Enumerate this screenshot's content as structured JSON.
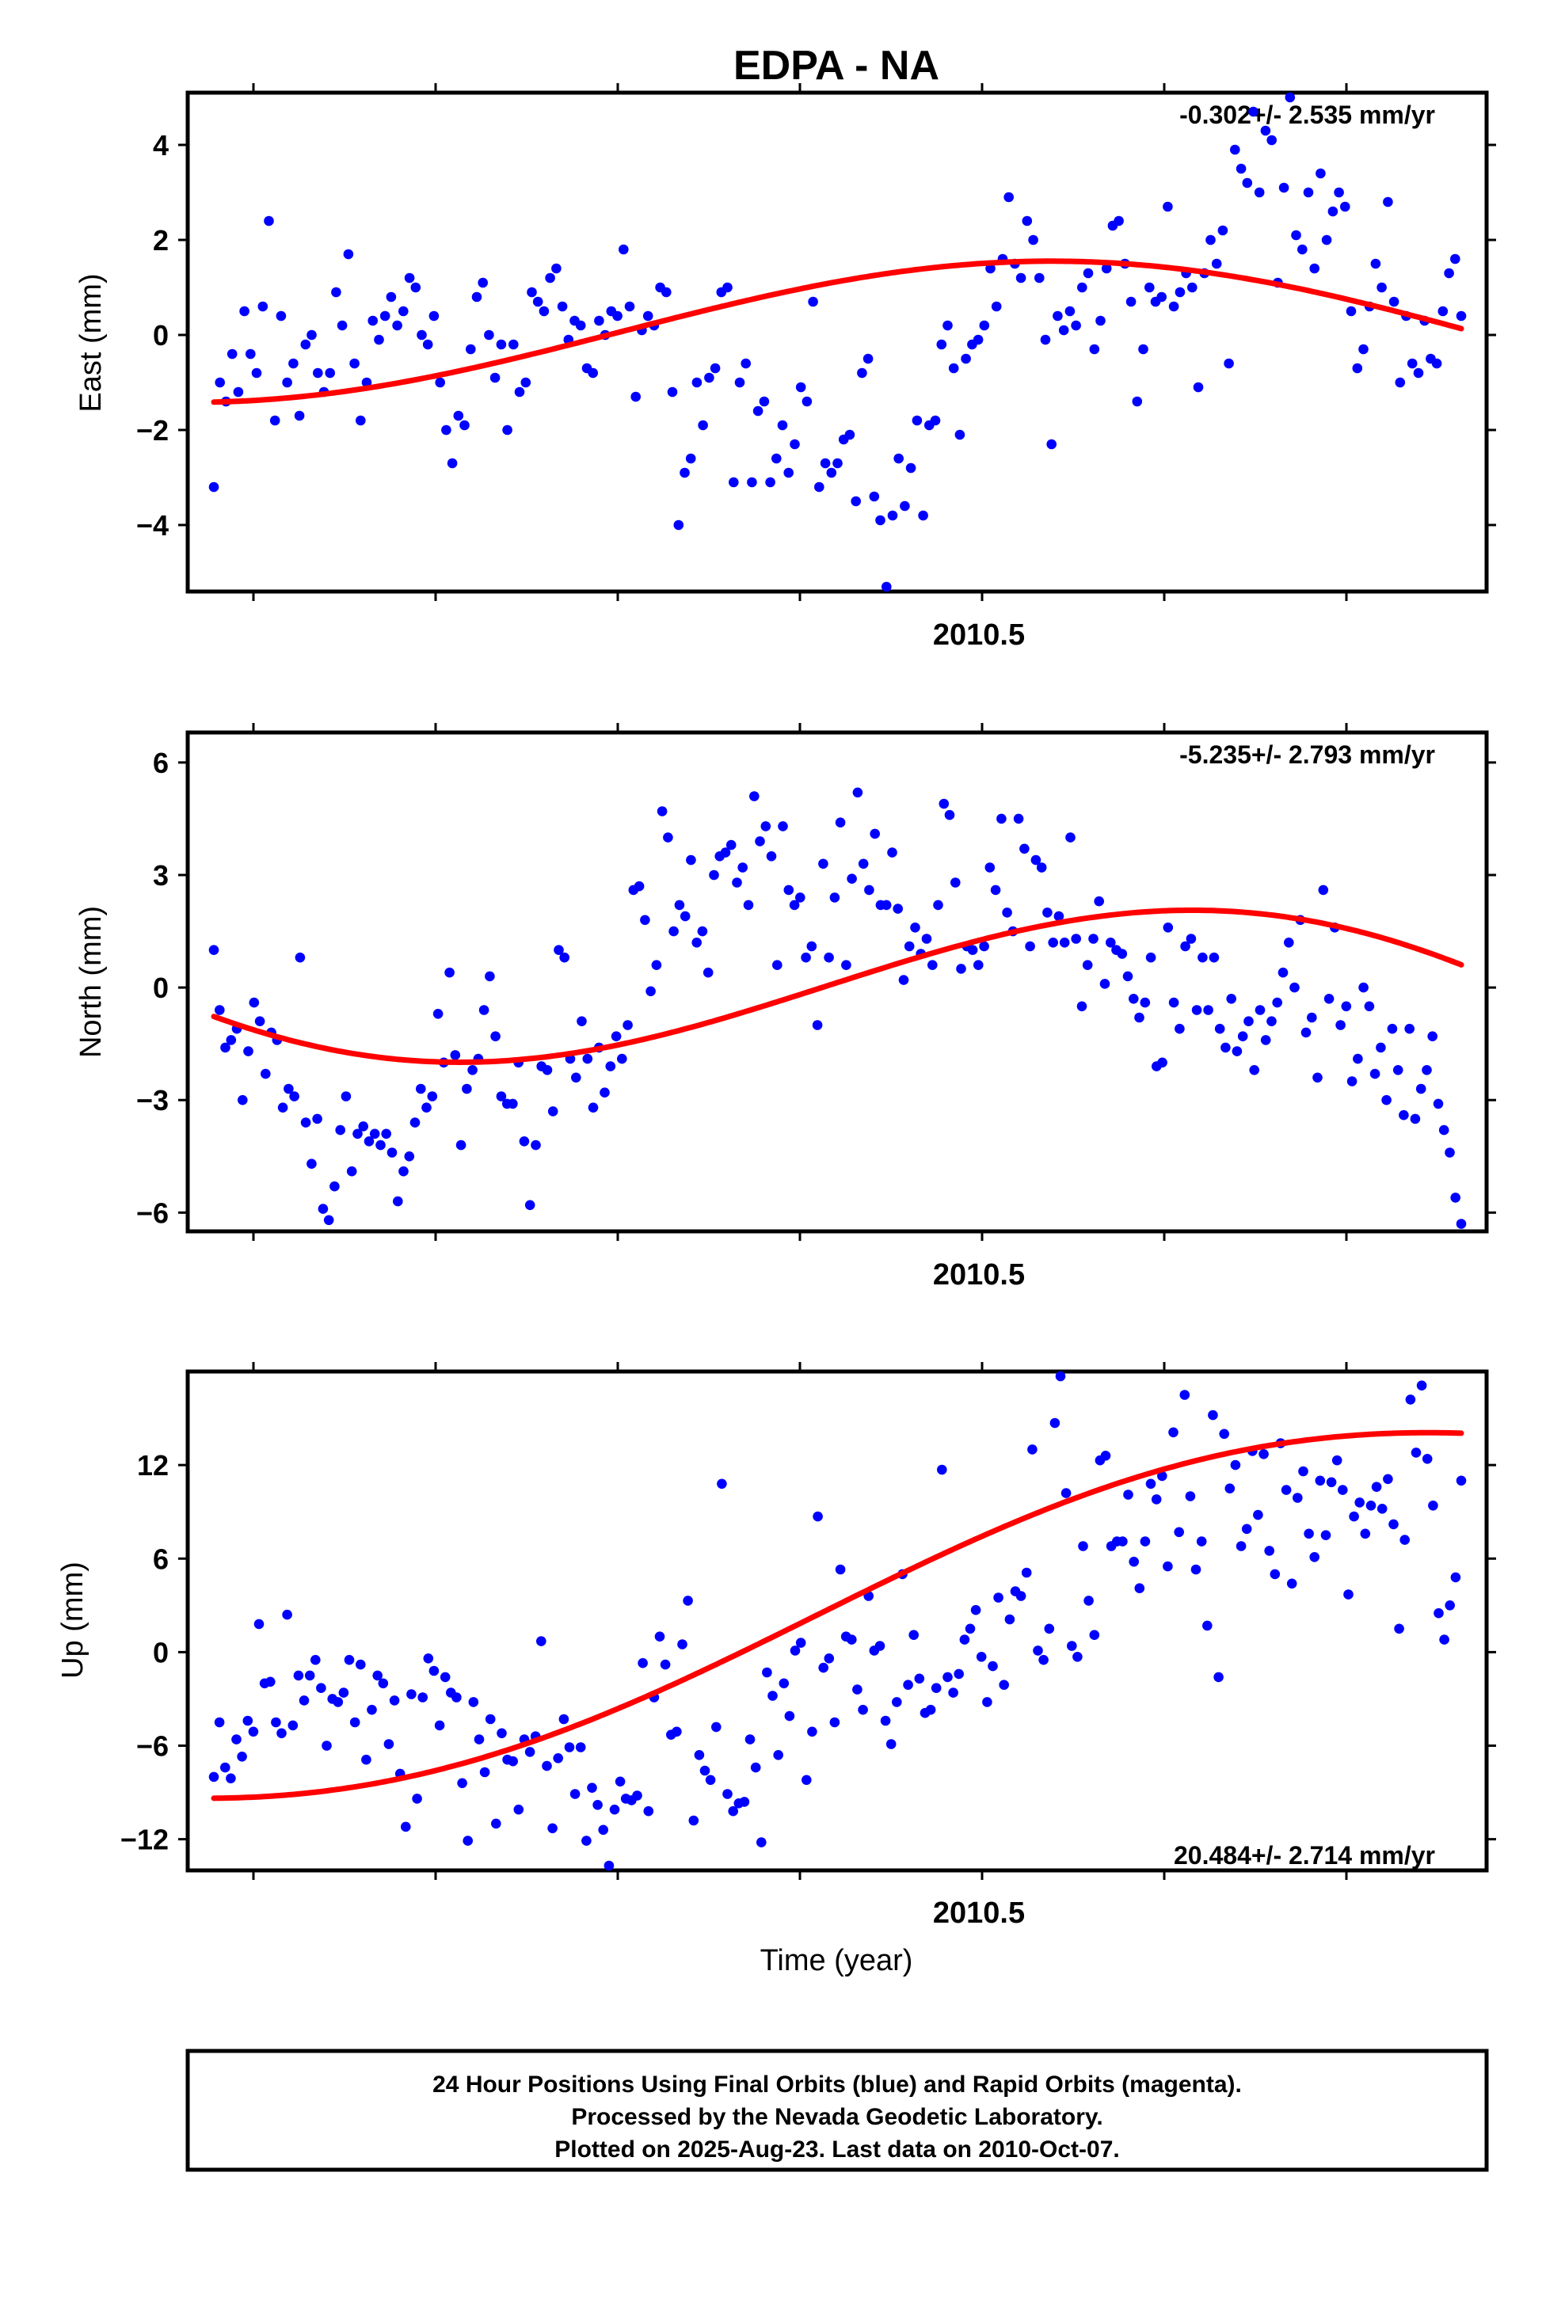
{
  "figure": {
    "title": "EDPA - NA",
    "footer_lines": [
      "24 Hour Positions Using Final Orbits (blue) and Rapid Orbits (magenta).",
      "Processed by the Nevada Geodetic Laboratory.",
      "Plotted on 2025-Aug-23. Last data on 2010-Oct-07."
    ],
    "colors": {
      "points": "#0000ff",
      "fit": "#ff0000",
      "axes": "#000000"
    }
  },
  "chart_data": [
    {
      "type": "scatter",
      "ylabel": "East (mm)",
      "xlabel": "",
      "x_tick_label": "2010.5",
      "xlim": [
        2010.145,
        2010.855
      ],
      "ylim": [
        -5.4,
        5.1
      ],
      "yticks": [
        4,
        2,
        0,
        -2,
        -4
      ],
      "ytick_labels": [
        "4",
        "2",
        "0",
        "−2",
        "−4"
      ],
      "rate_label": "-0.302+/- 2.535 mm/yr",
      "rate_position": "top-right",
      "series": [
        {
          "values": [
            -3.2,
            -1.0,
            -1.4,
            -0.4,
            -1.2,
            0.5,
            -0.4,
            -0.8,
            0.6,
            2.4,
            -1.8,
            0.4,
            -1.0,
            -0.6,
            -1.7,
            -0.2,
            0.0,
            -0.8,
            -1.2,
            -0.8,
            0.9,
            0.2,
            1.7,
            -0.6,
            -1.8,
            -1.0,
            0.3,
            -0.1,
            0.4,
            0.8,
            0.2,
            0.5,
            1.2,
            1.0,
            0.0,
            -0.2,
            0.4,
            -1.0,
            -2.0,
            -2.7,
            -1.7,
            -1.9,
            -0.3,
            0.8,
            1.1,
            0.0,
            -0.9,
            -0.2,
            -2.0,
            -0.2,
            -1.2,
            -1.0,
            0.9,
            0.7,
            0.5,
            1.2,
            1.4,
            0.6,
            -0.1,
            0.3,
            0.2,
            -0.7,
            -0.8,
            0.3,
            0.0,
            0.5,
            0.4,
            1.8,
            0.6,
            -1.3,
            0.1,
            0.4,
            0.2,
            1.0,
            0.9,
            -1.2,
            -4.0,
            -2.9,
            -2.6,
            -1.0,
            -1.9,
            -0.9,
            -0.7,
            0.9,
            1.0,
            -3.1,
            -1.0,
            -0.6,
            -3.1,
            -1.6,
            -1.4,
            -3.1,
            -2.6,
            -1.9,
            -2.9,
            -2.3,
            -1.1,
            -1.4,
            0.7,
            -3.2,
            -2.7,
            -2.9,
            -2.7,
            -2.2,
            -2.1,
            -3.5,
            -0.8,
            -0.5,
            -3.4,
            -3.9,
            -5.3,
            -3.8,
            -2.6,
            -3.6,
            -2.8,
            -1.8,
            -3.8,
            -1.9,
            -1.8,
            -0.2,
            0.2,
            -0.7,
            -2.1,
            -0.5,
            -0.2,
            -0.1,
            0.2,
            1.4,
            0.6,
            1.6,
            2.9,
            1.5,
            1.2,
            2.4,
            2.0,
            1.2,
            -0.1,
            -2.3,
            0.4,
            0.1,
            0.5,
            0.2,
            1.0,
            1.3,
            -0.3,
            0.3,
            1.4,
            2.3,
            2.4,
            1.5,
            0.7,
            -1.4,
            -0.3,
            1.0,
            0.7,
            0.8,
            2.7,
            0.6,
            0.9,
            1.3,
            1.0,
            -1.1,
            1.3,
            2.0,
            1.5,
            2.2,
            -0.6,
            3.9,
            3.5,
            3.2,
            4.7,
            3.0,
            4.3,
            4.1,
            1.1,
            3.1,
            5.0,
            2.1,
            1.8,
            3.0,
            1.4,
            3.4,
            2.0,
            2.6,
            3.0,
            2.7,
            0.5,
            -0.7,
            -0.3,
            0.6,
            1.5,
            1.0,
            2.8,
            0.7,
            -1.0,
            0.4,
            -0.6,
            -0.8,
            0.3,
            -0.5,
            -0.6,
            0.5,
            1.3,
            1.6,
            0.4
          ]
        }
      ],
      "fit_label": "",
      "fit": {
        "mean": 0.03,
        "rate": -0.302,
        "cos": -1.55,
        "sin": 0.18
      }
    },
    {
      "type": "scatter",
      "ylabel": "North (mm)",
      "xlabel": "",
      "x_tick_label": "2010.5",
      "xlim": [
        2010.145,
        2010.855
      ],
      "ylim": [
        -6.5,
        6.8
      ],
      "yticks": [
        6,
        3,
        0,
        -3,
        -6
      ],
      "ytick_labels": [
        "6",
        "3",
        "0",
        "−3",
        "−6"
      ],
      "rate_label": "-5.235+/- 2.793 mm/yr",
      "rate_position": "top-right",
      "series": [
        {
          "values": [
            1.0,
            -0.6,
            -1.6,
            -1.4,
            -1.1,
            -3.0,
            -1.7,
            -0.4,
            -0.9,
            -2.3,
            -1.2,
            -1.4,
            -3.2,
            -2.7,
            -2.9,
            0.8,
            -3.6,
            -4.7,
            -3.5,
            -5.9,
            -6.2,
            -5.3,
            -3.8,
            -2.9,
            -4.9,
            -3.9,
            -3.7,
            -4.1,
            -3.9,
            -4.2,
            -3.9,
            -4.4,
            -5.7,
            -4.9,
            -4.5,
            -3.6,
            -2.7,
            -3.2,
            -2.9,
            -0.7,
            -2.0,
            0.4,
            -1.8,
            -4.2,
            -2.7,
            -2.2,
            -1.9,
            -0.6,
            0.3,
            -1.3,
            -2.9,
            -3.1,
            -3.1,
            -2.0,
            -4.1,
            -5.8,
            -4.2,
            -2.1,
            -2.2,
            -3.3,
            1.0,
            0.8,
            -1.9,
            -2.4,
            -0.9,
            -1.9,
            -3.2,
            -1.6,
            -2.8,
            -2.1,
            -1.3,
            -1.9,
            -1.0,
            2.6,
            2.7,
            1.8,
            -0.1,
            0.6,
            4.7,
            4.0,
            1.5,
            2.2,
            1.9,
            3.4,
            1.2,
            1.5,
            0.4,
            3.0,
            3.5,
            3.6,
            3.8,
            2.8,
            3.2,
            2.2,
            5.1,
            3.9,
            4.3,
            3.5,
            0.6,
            4.3,
            2.6,
            2.2,
            2.4,
            0.8,
            1.1,
            -1.0,
            3.3,
            0.8,
            2.4,
            4.4,
            0.6,
            2.9,
            5.2,
            3.3,
            2.6,
            4.1,
            2.2,
            2.2,
            3.6,
            2.1,
            0.2,
            1.1,
            1.6,
            0.9,
            1.3,
            0.6,
            2.2,
            4.9,
            4.6,
            2.8,
            0.5,
            1.1,
            1.0,
            0.6,
            1.1,
            3.2,
            2.6,
            4.5,
            2.0,
            1.5,
            4.5,
            3.7,
            1.1,
            3.4,
            3.2,
            2.0,
            1.2,
            1.9,
            1.2,
            4.0,
            1.3,
            -0.5,
            0.6,
            1.3,
            2.3,
            0.1,
            1.2,
            1.0,
            0.9,
            0.3,
            -0.3,
            -0.8,
            -0.4,
            0.8,
            -2.1,
            -2.0,
            1.6,
            -0.4,
            -1.1,
            1.1,
            1.3,
            -0.6,
            0.8,
            -0.6,
            0.8,
            -1.1,
            -1.6,
            -0.3,
            -1.7,
            -1.3,
            -0.9,
            -2.2,
            -0.6,
            -1.4,
            -0.9,
            -0.4,
            0.4,
            1.2,
            0.0,
            1.8,
            -1.2,
            -0.8,
            -2.4,
            2.6,
            -0.3,
            1.6,
            -1.0,
            -0.5,
            -2.5,
            -1.9,
            0.0,
            -0.5,
            -2.3,
            -1.6,
            -3.0,
            -1.1,
            -2.2,
            -3.4,
            -1.1,
            -3.5,
            -2.7,
            -2.2,
            -1.3,
            -3.1,
            -3.8,
            -4.4,
            -5.6,
            -6.3
          ]
        }
      ],
      "fit_label": "",
      "fit": {
        "mean": 0.0,
        "rate": -5.235,
        "cos": -2.63,
        "sin": -1.87
      }
    },
    {
      "type": "scatter",
      "ylabel": "Up (mm)",
      "xlabel": "Time (year)",
      "x_tick_label": "2010.5",
      "xlim": [
        2010.145,
        2010.855
      ],
      "ylim": [
        -14.0,
        18.0
      ],
      "yticks": [
        12,
        6,
        0,
        -6,
        -12
      ],
      "ytick_labels": [
        "12",
        "6",
        "0",
        "−6",
        "−12"
      ],
      "rate_label": "20.484+/- 2.714 mm/yr",
      "rate_position": "bottom-right",
      "series": [
        {
          "values": [
            -8.0,
            -4.5,
            -7.4,
            -8.1,
            -5.6,
            -6.7,
            -4.4,
            -5.1,
            1.8,
            -2.0,
            -1.9,
            -4.5,
            -5.2,
            2.4,
            -4.7,
            -1.5,
            -3.1,
            -1.5,
            -0.5,
            -2.3,
            -6.0,
            -3.0,
            -3.2,
            -2.6,
            -0.5,
            -4.5,
            -0.8,
            -6.9,
            -3.7,
            -1.5,
            -2.0,
            -5.9,
            -3.1,
            -7.8,
            -11.2,
            -2.7,
            -9.4,
            -2.9,
            -0.4,
            -1.2,
            -4.7,
            -1.6,
            -2.6,
            -2.9,
            -8.4,
            -12.1,
            -3.2,
            -5.6,
            -7.7,
            -4.3,
            -11.0,
            -5.2,
            -6.9,
            -7.0,
            -10.1,
            -5.6,
            -6.4,
            -5.4,
            0.7,
            -7.3,
            -11.3,
            -6.8,
            -4.3,
            -6.1,
            -9.1,
            -6.1,
            -12.1,
            -8.7,
            -9.8,
            -11.4,
            -13.7,
            -10.1,
            -8.3,
            -9.4,
            -9.5,
            -9.2,
            -0.7,
            -10.2,
            -2.9,
            1.0,
            -0.8,
            -5.3,
            -5.1,
            0.5,
            3.3,
            -10.8,
            -6.6,
            -7.6,
            -8.2,
            -4.8,
            10.8,
            -9.1,
            -10.2,
            -9.7,
            -9.6,
            -5.6,
            -7.4,
            -12.2,
            -1.3,
            -2.8,
            -6.6,
            -2.0,
            -4.1,
            0.1,
            0.6,
            -8.2,
            -5.1,
            8.7,
            -1.0,
            -0.4,
            -4.5,
            5.3,
            1.0,
            0.8,
            -2.4,
            -3.7,
            3.6,
            0.1,
            0.4,
            -4.4,
            -5.9,
            -3.2,
            5.0,
            -2.1,
            1.1,
            -1.7,
            -3.9,
            -3.7,
            -2.3,
            11.7,
            -1.6,
            -2.6,
            -1.4,
            0.8,
            1.5,
            2.7,
            -0.3,
            -3.2,
            -0.9,
            3.5,
            -2.1,
            2.1,
            3.9,
            3.6,
            5.1,
            13.0,
            0.1,
            -0.5,
            1.5,
            14.7,
            18.2,
            10.2,
            0.4,
            -0.3,
            6.8,
            3.3,
            1.1,
            12.3,
            12.6,
            6.8,
            7.1,
            7.1,
            10.1,
            5.8,
            4.1,
            7.1,
            10.8,
            9.8,
            11.3,
            5.5,
            14.1,
            7.7,
            16.5,
            10.0,
            5.3,
            7.1,
            1.7,
            15.2,
            -1.6,
            14.0,
            10.5,
            12.0,
            6.8,
            7.9,
            12.9,
            8.8,
            12.7,
            6.5,
            5.0,
            13.4,
            10.4,
            4.4,
            9.9,
            11.6,
            7.6,
            6.1,
            11.0,
            7.5,
            10.9,
            12.3,
            10.4,
            3.7,
            8.7,
            9.6,
            7.6,
            9.4,
            10.6,
            9.2,
            11.1,
            8.2,
            1.5,
            7.2,
            16.2,
            12.8,
            17.1,
            12.4,
            9.4,
            2.5,
            0.8,
            3.0,
            4.8,
            11.0
          ]
        }
      ],
      "fit_label": "",
      "fit": {
        "mean": 2.6,
        "rate": 20.484,
        "cos": -4.7,
        "sin": -3.1
      }
    }
  ]
}
